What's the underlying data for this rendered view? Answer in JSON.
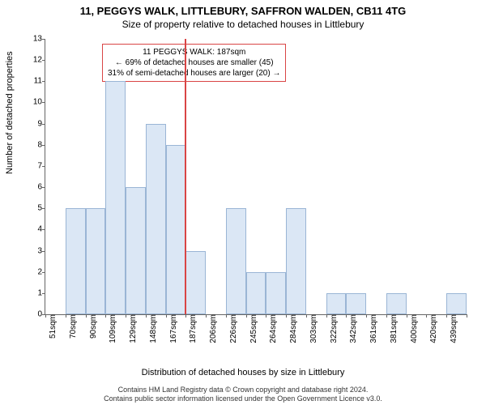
{
  "title_line1": "11, PEGGYS WALK, LITTLEBURY, SAFFRON WALDEN, CB11 4TG",
  "title_line2": "Size of property relative to detached houses in Littlebury",
  "ylabel": "Number of detached properties",
  "xlabel": "Distribution of detached houses by size in Littlebury",
  "chart": {
    "type": "histogram",
    "categories": [
      "51sqm",
      "70sqm",
      "90sqm",
      "109sqm",
      "129sqm",
      "148sqm",
      "167sqm",
      "187sqm",
      "206sqm",
      "226sqm",
      "245sqm",
      "264sqm",
      "284sqm",
      "303sqm",
      "322sqm",
      "342sqm",
      "361sqm",
      "381sqm",
      "400sqm",
      "420sqm",
      "439sqm"
    ],
    "values": [
      0,
      5,
      5,
      11,
      6,
      9,
      8,
      3,
      0,
      5,
      2,
      2,
      5,
      0,
      1,
      1,
      0,
      1,
      0,
      0,
      1
    ],
    "bar_fill": "#dbe7f5",
    "bar_border": "#9ab5d5",
    "ylim": [
      0,
      13
    ],
    "ytick_step": 1,
    "background_color": "#ffffff",
    "axis_color": "#666666",
    "tick_fontsize": 10,
    "label_fontsize": 11,
    "title_fontsize": 13,
    "bar_width_ratio": 1.0,
    "marker": {
      "index": 7,
      "color": "#d94545",
      "width": 2
    }
  },
  "info_box": {
    "line1": "11 PEGGYS WALK: 187sqm",
    "line2": "← 69% of detached houses are smaller (45)",
    "line3": "31% of semi-detached houses are larger (20) →",
    "border_color": "#d94545",
    "fontsize": 10
  },
  "footer_line1": "Contains HM Land Registry data © Crown copyright and database right 2024.",
  "footer_line2": "Contains public sector information licensed under the Open Government Licence v3.0."
}
